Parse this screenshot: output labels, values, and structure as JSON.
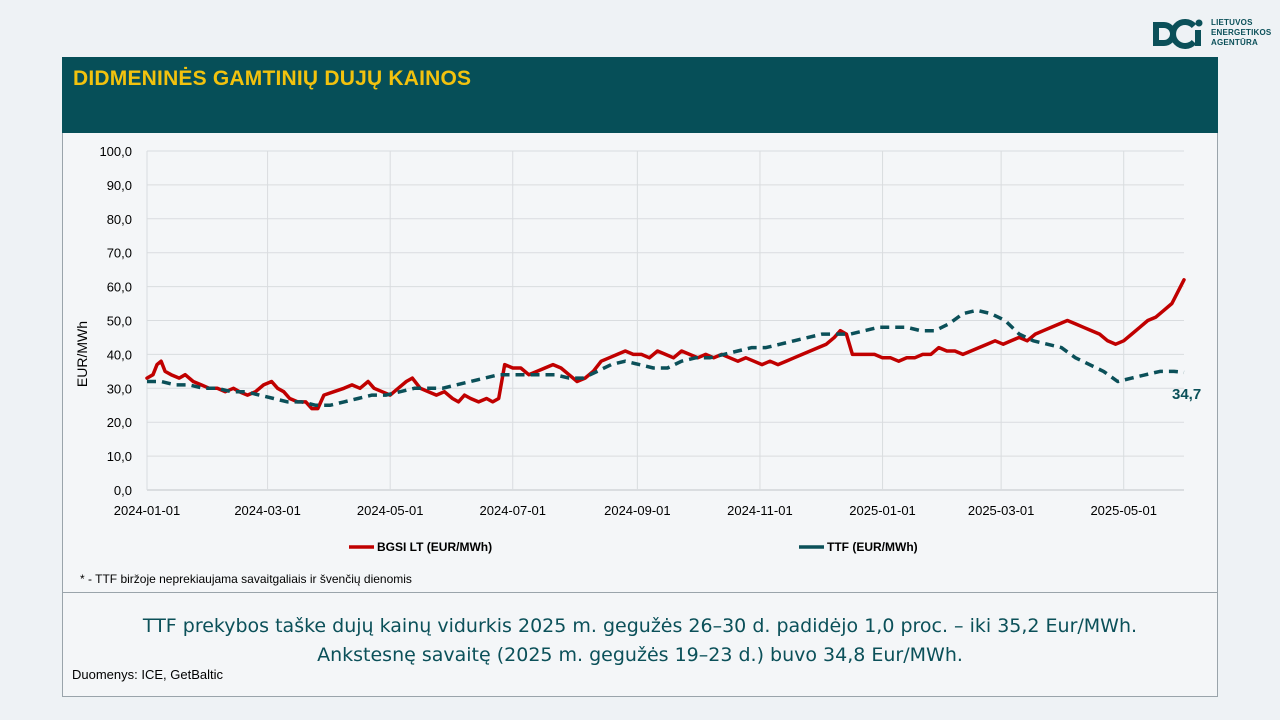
{
  "logo": {
    "lines": [
      "LIETUVOS",
      "ENERGETIKOS",
      "AGENTŪRA"
    ],
    "color": "#0b5059"
  },
  "header": {
    "title": "DIDMENINĖS GAMTINIŲ DUJŲ KAINOS",
    "background": "#064f58",
    "title_color": "#f2c20e"
  },
  "chart_data": {
    "type": "line",
    "ylabel": "EUR/MWh",
    "ylim": [
      0,
      100
    ],
    "yticks": [
      "0,0",
      "10,0",
      "20,0",
      "30,0",
      "40,0",
      "50,0",
      "60,0",
      "70,0",
      "80,0",
      "90,0",
      "100,0"
    ],
    "xlim": [
      "2024-01-01",
      "2025-05-31"
    ],
    "xticks": [
      "2024-01-01",
      "2024-03-01",
      "2024-05-01",
      "2024-07-01",
      "2024-09-01",
      "2024-11-01",
      "2025-01-01",
      "2025-03-01",
      "2025-05-01"
    ],
    "grid": true,
    "legend_position": "bottom",
    "series": [
      {
        "name": "BGSI LT (EUR/MWh)",
        "color": "#c00000",
        "style": "solid",
        "points": [
          [
            "2024-01-01",
            33
          ],
          [
            "2024-01-04",
            34
          ],
          [
            "2024-01-06",
            37
          ],
          [
            "2024-01-08",
            38
          ],
          [
            "2024-01-10",
            35
          ],
          [
            "2024-01-13",
            34
          ],
          [
            "2024-01-17",
            33
          ],
          [
            "2024-01-20",
            34
          ],
          [
            "2024-01-24",
            32
          ],
          [
            "2024-01-28",
            31
          ],
          [
            "2024-02-01",
            30
          ],
          [
            "2024-02-05",
            30
          ],
          [
            "2024-02-09",
            29
          ],
          [
            "2024-02-13",
            30
          ],
          [
            "2024-02-16",
            29
          ],
          [
            "2024-02-20",
            28
          ],
          [
            "2024-02-24",
            29
          ],
          [
            "2024-02-28",
            31
          ],
          [
            "2024-03-03",
            32
          ],
          [
            "2024-03-06",
            30
          ],
          [
            "2024-03-09",
            29
          ],
          [
            "2024-03-12",
            27
          ],
          [
            "2024-03-16",
            26
          ],
          [
            "2024-03-20",
            26
          ],
          [
            "2024-03-23",
            24
          ],
          [
            "2024-03-26",
            24
          ],
          [
            "2024-03-29",
            28
          ],
          [
            "2024-04-03",
            29
          ],
          [
            "2024-04-08",
            30
          ],
          [
            "2024-04-12",
            31
          ],
          [
            "2024-04-16",
            30
          ],
          [
            "2024-04-20",
            32
          ],
          [
            "2024-04-23",
            30
          ],
          [
            "2024-04-27",
            29
          ],
          [
            "2024-05-01",
            28
          ],
          [
            "2024-05-05",
            30
          ],
          [
            "2024-05-09",
            32
          ],
          [
            "2024-05-12",
            33
          ],
          [
            "2024-05-16",
            30
          ],
          [
            "2024-05-20",
            29
          ],
          [
            "2024-05-24",
            28
          ],
          [
            "2024-05-28",
            29
          ],
          [
            "2024-06-01",
            27
          ],
          [
            "2024-06-04",
            26
          ],
          [
            "2024-06-07",
            28
          ],
          [
            "2024-06-10",
            27
          ],
          [
            "2024-06-14",
            26
          ],
          [
            "2024-06-18",
            27
          ],
          [
            "2024-06-21",
            26
          ],
          [
            "2024-06-24",
            27
          ],
          [
            "2024-06-27",
            37
          ],
          [
            "2024-07-01",
            36
          ],
          [
            "2024-07-05",
            36
          ],
          [
            "2024-07-09",
            34
          ],
          [
            "2024-07-13",
            35
          ],
          [
            "2024-07-17",
            36
          ],
          [
            "2024-07-21",
            37
          ],
          [
            "2024-07-25",
            36
          ],
          [
            "2024-07-29",
            34
          ],
          [
            "2024-08-02",
            32
          ],
          [
            "2024-08-06",
            33
          ],
          [
            "2024-08-10",
            35
          ],
          [
            "2024-08-14",
            38
          ],
          [
            "2024-08-18",
            39
          ],
          [
            "2024-08-22",
            40
          ],
          [
            "2024-08-26",
            41
          ],
          [
            "2024-08-30",
            40
          ],
          [
            "2024-09-03",
            40
          ],
          [
            "2024-09-07",
            39
          ],
          [
            "2024-09-11",
            41
          ],
          [
            "2024-09-15",
            40
          ],
          [
            "2024-09-19",
            39
          ],
          [
            "2024-09-23",
            41
          ],
          [
            "2024-09-27",
            40
          ],
          [
            "2024-10-01",
            39
          ],
          [
            "2024-10-05",
            40
          ],
          [
            "2024-10-09",
            39
          ],
          [
            "2024-10-13",
            40
          ],
          [
            "2024-10-17",
            39
          ],
          [
            "2024-10-21",
            38
          ],
          [
            "2024-10-25",
            39
          ],
          [
            "2024-10-29",
            38
          ],
          [
            "2024-11-02",
            37
          ],
          [
            "2024-11-06",
            38
          ],
          [
            "2024-11-10",
            37
          ],
          [
            "2024-11-14",
            38
          ],
          [
            "2024-11-18",
            39
          ],
          [
            "2024-11-22",
            40
          ],
          [
            "2024-11-26",
            41
          ],
          [
            "2024-11-30",
            42
          ],
          [
            "2024-12-04",
            43
          ],
          [
            "2024-12-08",
            45
          ],
          [
            "2024-12-11",
            47
          ],
          [
            "2024-12-14",
            46
          ],
          [
            "2024-12-17",
            40
          ],
          [
            "2024-12-20",
            40
          ],
          [
            "2024-12-24",
            40
          ],
          [
            "2024-12-28",
            40
          ],
          [
            "2025-01-01",
            39
          ],
          [
            "2025-01-05",
            39
          ],
          [
            "2025-01-09",
            38
          ],
          [
            "2025-01-13",
            39
          ],
          [
            "2025-01-17",
            39
          ],
          [
            "2025-01-21",
            40
          ],
          [
            "2025-01-25",
            40
          ],
          [
            "2025-01-29",
            42
          ],
          [
            "2025-02-02",
            41
          ],
          [
            "2025-02-06",
            41
          ],
          [
            "2025-02-10",
            40
          ],
          [
            "2025-02-14",
            41
          ],
          [
            "2025-02-18",
            42
          ],
          [
            "2025-02-22",
            43
          ],
          [
            "2025-02-26",
            44
          ],
          [
            "2025-03-02",
            43
          ],
          [
            "2025-03-06",
            44
          ],
          [
            "2025-03-10",
            45
          ],
          [
            "2025-03-14",
            44
          ],
          [
            "2025-03-18",
            46
          ],
          [
            "2025-03-22",
            47
          ],
          [
            "2025-03-26",
            48
          ],
          [
            "2025-03-30",
            49
          ],
          [
            "2025-04-03",
            50
          ],
          [
            "2025-04-07",
            49
          ],
          [
            "2025-04-11",
            48
          ],
          [
            "2025-04-15",
            47
          ],
          [
            "2025-04-19",
            46
          ],
          [
            "2025-04-23",
            44
          ],
          [
            "2025-04-27",
            43
          ],
          [
            "2025-05-01",
            44
          ],
          [
            "2025-05-05",
            46
          ],
          [
            "2025-05-09",
            48
          ],
          [
            "2025-05-13",
            50
          ],
          [
            "2025-05-17",
            51
          ],
          [
            "2025-05-21",
            53
          ],
          [
            "2025-05-25",
            55
          ],
          [
            "2025-05-31",
            62
          ]
        ]
      },
      {
        "name": "TTF (EUR/MWh)",
        "color": "#0b5059",
        "style": "dashed",
        "points": [
          [
            "2024-01-01",
            32
          ],
          [
            "2024-01-08",
            32
          ],
          [
            "2024-01-15",
            31
          ],
          [
            "2024-01-22",
            31
          ],
          [
            "2024-01-29",
            30
          ],
          [
            "2024-02-05",
            30
          ],
          [
            "2024-02-12",
            29
          ],
          [
            "2024-02-19",
            29
          ],
          [
            "2024-02-26",
            28
          ],
          [
            "2024-03-04",
            27
          ],
          [
            "2024-03-11",
            26
          ],
          [
            "2024-03-18",
            26
          ],
          [
            "2024-03-25",
            25
          ],
          [
            "2024-04-01",
            25
          ],
          [
            "2024-04-08",
            26
          ],
          [
            "2024-04-15",
            27
          ],
          [
            "2024-04-22",
            28
          ],
          [
            "2024-04-29",
            28
          ],
          [
            "2024-05-06",
            29
          ],
          [
            "2024-05-13",
            30
          ],
          [
            "2024-05-20",
            30
          ],
          [
            "2024-05-27",
            30
          ],
          [
            "2024-06-03",
            31
          ],
          [
            "2024-06-10",
            32
          ],
          [
            "2024-06-17",
            33
          ],
          [
            "2024-06-24",
            34
          ],
          [
            "2024-07-01",
            34
          ],
          [
            "2024-07-08",
            34
          ],
          [
            "2024-07-15",
            34
          ],
          [
            "2024-07-22",
            34
          ],
          [
            "2024-07-29",
            33
          ],
          [
            "2024-08-05",
            33
          ],
          [
            "2024-08-12",
            35
          ],
          [
            "2024-08-19",
            37
          ],
          [
            "2024-08-26",
            38
          ],
          [
            "2024-09-02",
            37
          ],
          [
            "2024-09-09",
            36
          ],
          [
            "2024-09-16",
            36
          ],
          [
            "2024-09-23",
            38
          ],
          [
            "2024-09-30",
            39
          ],
          [
            "2024-10-07",
            39
          ],
          [
            "2024-10-14",
            40
          ],
          [
            "2024-10-21",
            41
          ],
          [
            "2024-10-28",
            42
          ],
          [
            "2024-11-04",
            42
          ],
          [
            "2024-11-11",
            43
          ],
          [
            "2024-11-18",
            44
          ],
          [
            "2024-11-25",
            45
          ],
          [
            "2024-12-02",
            46
          ],
          [
            "2024-12-09",
            46
          ],
          [
            "2024-12-16",
            46
          ],
          [
            "2024-12-23",
            47
          ],
          [
            "2024-12-30",
            48
          ],
          [
            "2025-01-06",
            48
          ],
          [
            "2025-01-13",
            48
          ],
          [
            "2025-01-20",
            47
          ],
          [
            "2025-01-27",
            47
          ],
          [
            "2025-02-03",
            49
          ],
          [
            "2025-02-10",
            52
          ],
          [
            "2025-02-17",
            53
          ],
          [
            "2025-02-24",
            52
          ],
          [
            "2025-03-03",
            50
          ],
          [
            "2025-03-10",
            46
          ],
          [
            "2025-03-17",
            44
          ],
          [
            "2025-03-24",
            43
          ],
          [
            "2025-03-31",
            42
          ],
          [
            "2025-04-07",
            39
          ],
          [
            "2025-04-14",
            37
          ],
          [
            "2025-04-21",
            35
          ],
          [
            "2025-04-28",
            32
          ],
          [
            "2025-05-05",
            33
          ],
          [
            "2025-05-12",
            34
          ],
          [
            "2025-05-19",
            35
          ],
          [
            "2025-05-26",
            35
          ],
          [
            "2025-05-31",
            34.7
          ]
        ]
      }
    ],
    "end_label": "34,7"
  },
  "footnote": "* - TTF biržoje neprekiaujama savaitgaliais ir švenčių dienomis",
  "summary": {
    "line1": "TTF prekybos taške dujų kainų vidurkis 2025 m. gegužės 26–30 d. padidėjo 1,0 proc. – iki 35,2 Eur/MWh.",
    "line2": "Ankstesnę savaitę (2025 m. gegužės 19–23 d.) buvo 34,8 Eur/MWh."
  },
  "source": "Duomenys: ICE, GetBaltic"
}
